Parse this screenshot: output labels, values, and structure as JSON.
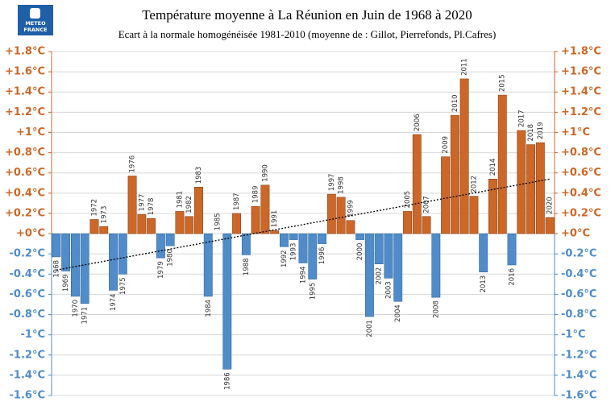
{
  "logo": {
    "line1": "METEO",
    "line2": "FRANCE"
  },
  "chart_data": {
    "type": "bar",
    "title": "Température moyenne à La Réunion en Juin de 1968 à 2020",
    "subtitle": "Ecart à la normale homogénéisée 1981-2010 (moyenne de : Gillot, Pierrefonds, Pl.Cafres)",
    "categories": [
      "1968",
      "1969",
      "1970",
      "1971",
      "1972",
      "1973",
      "1974",
      "1975",
      "1976",
      "1977",
      "1978",
      "1979",
      "1980",
      "1981",
      "1982",
      "1983",
      "1984",
      "1985",
      "1986",
      "1987",
      "1988",
      "1989",
      "1990",
      "1991",
      "1992",
      "1993",
      "1994",
      "1995",
      "1996",
      "1997",
      "1998",
      "1999",
      "2000",
      "2001",
      "2002",
      "2003",
      "2004",
      "2005",
      "2006",
      "2007",
      "2008",
      "2009",
      "2010",
      "2011",
      "2012",
      "2013",
      "2014",
      "2015",
      "2016",
      "2017",
      "2018",
      "2019",
      "2020"
    ],
    "values": [
      -0.23,
      -0.37,
      -0.62,
      -0.69,
      0.14,
      0.07,
      -0.56,
      -0.4,
      0.57,
      0.19,
      0.15,
      -0.24,
      -0.12,
      0.22,
      0.17,
      0.46,
      -0.62,
      0,
      -1.34,
      0.2,
      -0.21,
      0.27,
      0.48,
      0.03,
      -0.13,
      -0.06,
      -0.29,
      -0.45,
      -0.1,
      0.39,
      0.36,
      0.13,
      -0.06,
      -0.82,
      -0.3,
      -0.44,
      -0.67,
      0.22,
      0.98,
      0.17,
      -0.63,
      0.76,
      1.17,
      1.53,
      0.37,
      -0.38,
      0.54,
      1.37,
      -0.31,
      1.02,
      0.88,
      0.9,
      0.16
    ],
    "positive_color": "#cc6727",
    "negative_color": "#4f8cc9",
    "trend_values": [
      -0.36,
      0.54
    ],
    "ylim": [
      -1.6,
      1.8
    ],
    "yticks": [
      {
        "value": 1.8,
        "label": "+1.8°C"
      },
      {
        "value": 1.6,
        "label": "+1.6°C"
      },
      {
        "value": 1.4,
        "label": "+1.4°C"
      },
      {
        "value": 1.2,
        "label": "+1.2°C"
      },
      {
        "value": 1,
        "label": "+1°C"
      },
      {
        "value": 0.8,
        "label": "+0.8°C"
      },
      {
        "value": 0.6,
        "label": "+0.6°C"
      },
      {
        "value": 0.4,
        "label": "+0.4°C"
      },
      {
        "value": 0.2,
        "label": "+0.2°C"
      },
      {
        "value": 0,
        "label": "+0°C"
      },
      {
        "value": -0.2,
        "label": "-0.2°C"
      },
      {
        "value": -0.4,
        "label": "-0.4°C"
      },
      {
        "value": -0.6,
        "label": "-0.6°C"
      },
      {
        "value": -0.8,
        "label": "-0.8°C"
      },
      {
        "value": -1,
        "label": "-1°C"
      },
      {
        "value": -1.2,
        "label": "-1.2°C"
      },
      {
        "value": -1.4,
        "label": "-1.4°C"
      },
      {
        "value": -1.6,
        "label": "-1.6°C"
      }
    ],
    "grid": true
  }
}
